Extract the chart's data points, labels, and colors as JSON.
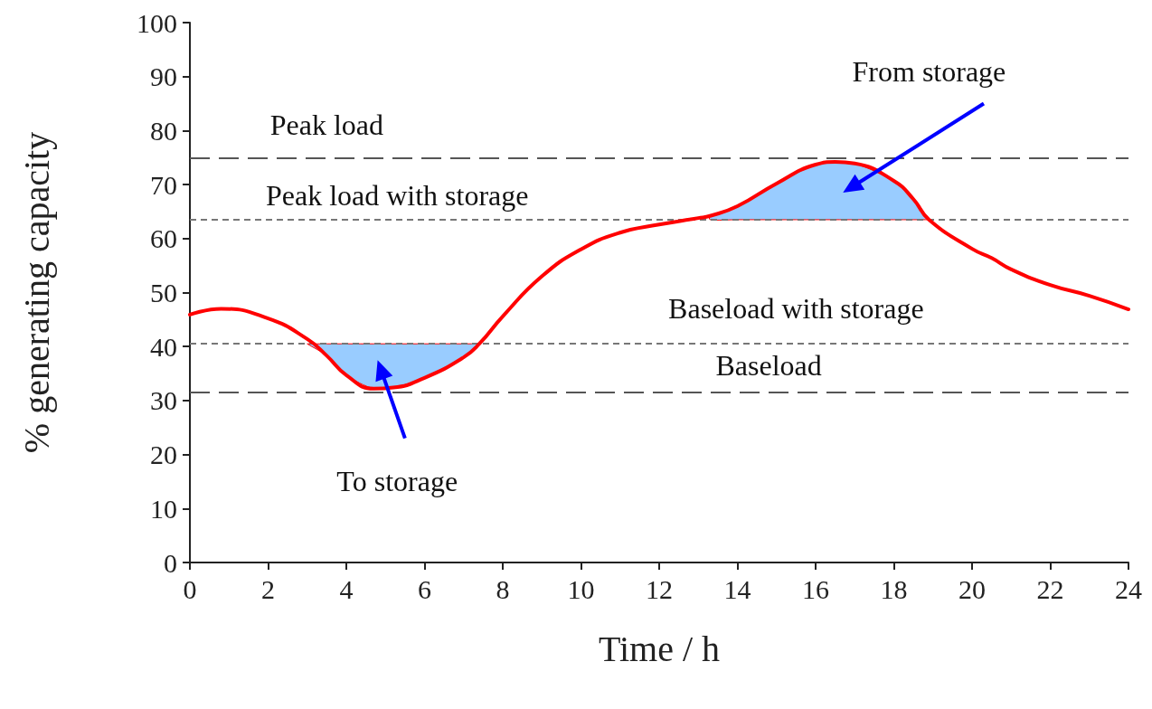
{
  "chart_data": {
    "type": "line",
    "xlabel": "Time / h",
    "ylabel": "% generating capacity",
    "xlim": [
      0,
      24
    ],
    "xticks": [
      0,
      2,
      4,
      6,
      8,
      10,
      12,
      14,
      16,
      18,
      20,
      22,
      24
    ],
    "ylim": [
      0,
      100
    ],
    "yticks": [
      0,
      10,
      20,
      30,
      40,
      50,
      60,
      70,
      80,
      90,
      100
    ],
    "grid": false,
    "marker": "none",
    "line_style": "solid",
    "series": [
      {
        "color": "#ff0000",
        "x": [
          0,
          0.8,
          2,
          3,
          3.5,
          4,
          4.7,
          5.2,
          6,
          7,
          7.4,
          8,
          9,
          10,
          11,
          12,
          13,
          13.3,
          14,
          15,
          16,
          16.5,
          17,
          18,
          18.5,
          18.9,
          20,
          20.5,
          21,
          22,
          23,
          24
        ],
        "values": [
          45.9,
          47,
          45.2,
          41.4,
          38.3,
          34.7,
          32.2,
          32.4,
          34.2,
          38,
          40.5,
          45.6,
          53,
          58,
          61.1,
          62.6,
          63.8,
          64.2,
          66,
          70.2,
          73.7,
          74.2,
          73.9,
          70.7,
          67.3,
          63.5,
          58.1,
          56.4,
          54.3,
          51.4,
          49.4,
          46.9
        ],
        "lower": [
          null,
          null,
          null,
          40.5,
          38.3,
          34.7,
          32.2,
          32.4,
          34.2,
          38,
          40.5,
          null,
          null,
          null,
          null,
          null,
          null,
          63.5,
          63.5,
          63.5,
          63.5,
          63.5,
          63.5,
          63.5,
          63.5,
          63.5,
          null,
          null,
          null,
          null,
          null,
          null
        ],
        "upper": [
          null,
          null,
          null,
          40.5,
          40.5,
          40.5,
          40.5,
          40.5,
          40.5,
          40.5,
          40.5,
          null,
          null,
          null,
          null,
          null,
          null,
          64.2,
          66,
          70.2,
          73.7,
          74.2,
          73.9,
          70.7,
          67.3,
          63.5,
          null,
          null,
          null,
          null,
          null,
          null
        ]
      }
    ],
    "ref_lines": [
      {
        "axis": "y",
        "value": 75,
        "label": "Peak load",
        "line_style": "dashed",
        "color": "#555555"
      },
      {
        "axis": "y",
        "value": 63.5,
        "label": "Peak load with storage",
        "line_style": "dotted",
        "color": "#777777"
      },
      {
        "axis": "y",
        "value": 40.5,
        "label": "Baseload with storage",
        "line_style": "dotted",
        "color": "#777777"
      },
      {
        "axis": "y",
        "value": 31.5,
        "label": "Baseload",
        "line_style": "dashed",
        "color": "#555555"
      }
    ],
    "annotations": [
      "To storage",
      "From storage"
    ]
  }
}
